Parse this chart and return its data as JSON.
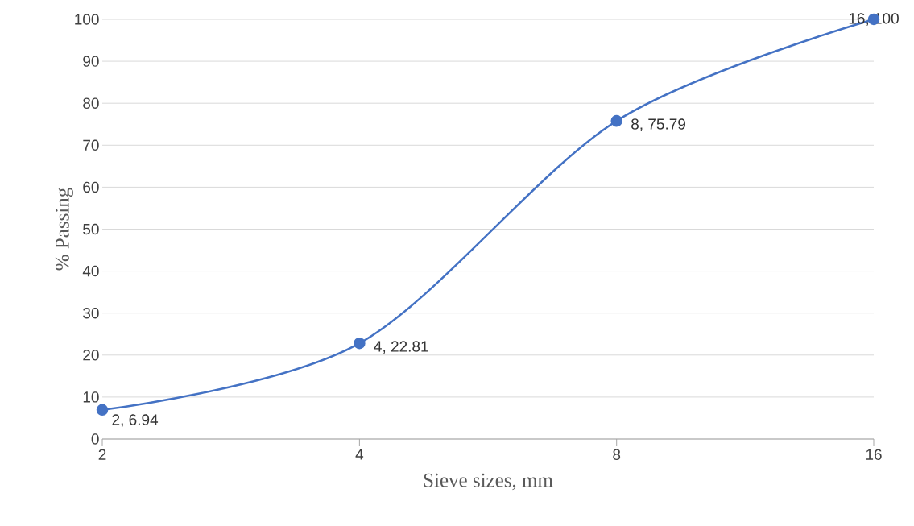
{
  "chart_data": {
    "type": "line",
    "xlabel": "Sieve sizes, mm",
    "ylabel": "% Passing",
    "x": [
      2,
      4,
      8,
      16
    ],
    "values": [
      6.94,
      22.81,
      75.79,
      100
    ],
    "value_labels": [
      "2, 6.94",
      "4, 22.81",
      "8, 75.79",
      "16, 100"
    ],
    "color": "#4472c4",
    "marker": "circle",
    "line_style": "solid",
    "log": "x",
    "xlim": [
      2,
      16
    ],
    "xticks": [
      2,
      4,
      8,
      16
    ],
    "ylim": [
      0,
      100
    ],
    "yticks": [
      0,
      10,
      20,
      30,
      40,
      50,
      60,
      70,
      80,
      90,
      100
    ],
    "grid": "y"
  }
}
